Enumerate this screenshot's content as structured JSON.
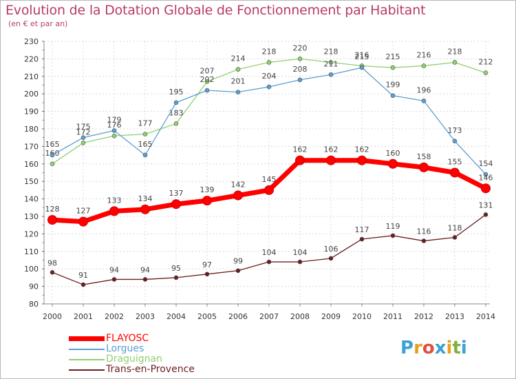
{
  "header": {
    "title": "Evolution de la Dotation Globale de Fonctionnement par Habitant",
    "subtitle": "(en € et par an)"
  },
  "logo": {
    "letters": [
      {
        "ch": "P",
        "color": "#3aa0d8"
      },
      {
        "ch": "r",
        "color": "#e8a020"
      },
      {
        "ch": "o",
        "color": "#e05040"
      },
      {
        "ch": "x",
        "color": "#3aa0d8"
      },
      {
        "ch": "i",
        "color": "#e8a020"
      },
      {
        "ch": "t",
        "color": "#80b040"
      },
      {
        "ch": "i",
        "color": "#3aa0d8"
      }
    ]
  },
  "chart_data": {
    "type": "line",
    "title": "Evolution de la Dotation Globale de Fonctionnement par Habitant",
    "subtitle": "(en € et par an)",
    "xlabel": "",
    "ylabel": "",
    "x": [
      "2000",
      "2001",
      "2002",
      "2003",
      "2004",
      "2005",
      "2006",
      "2007",
      "2008",
      "2009",
      "2010",
      "2011",
      "2012",
      "2013",
      "2014"
    ],
    "ylim": [
      80,
      230
    ],
    "yticks": [
      80,
      90,
      100,
      110,
      120,
      130,
      140,
      150,
      160,
      170,
      180,
      190,
      200,
      210,
      220,
      230
    ],
    "grid": true,
    "legend_position": "bottom-left",
    "series": [
      {
        "name": "Trans-en-Provence",
        "color": "#6b1d20",
        "values": [
          98,
          91,
          94,
          94,
          95,
          97,
          99,
          104,
          104,
          106,
          117,
          119,
          116,
          118,
          131
        ]
      },
      {
        "name": "Draguignan",
        "color": "#8ed070",
        "values": [
          160,
          172,
          176,
          177,
          183,
          207,
          214,
          218,
          220,
          218,
          216,
          215,
          216,
          218,
          212
        ]
      },
      {
        "name": "Lorgues",
        "color": "#5a9ed0",
        "values": [
          165,
          175,
          179,
          165,
          195,
          202,
          201,
          204,
          208,
          211,
          215,
          199,
          196,
          173,
          154
        ]
      },
      {
        "name": "FLAYOSC",
        "color": "#ff0000",
        "values": [
          128,
          127,
          133,
          134,
          137,
          139,
          142,
          145,
          162,
          162,
          162,
          160,
          158,
          155,
          146
        ]
      }
    ],
    "legend_order": [
      "FLAYOSC",
      "Lorgues",
      "Draguignan",
      "Trans-en-Provence"
    ]
  }
}
